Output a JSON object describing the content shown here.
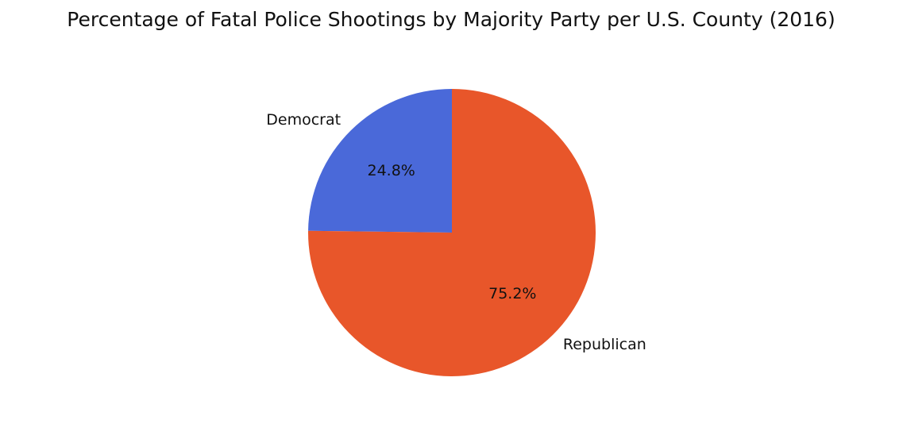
{
  "chart_data": {
    "type": "pie",
    "title": "Percentage of Fatal Police Shootings by Majority Party per U.S. County (2016)",
    "slices": [
      {
        "label": "Democrat",
        "value": 24.8,
        "pct_label": "24.8%",
        "color": "#4a69d9"
      },
      {
        "label": "Republican",
        "value": 75.2,
        "pct_label": "75.2%",
        "color": "#e8562a"
      }
    ],
    "start_angle": "top",
    "direction": "counterclockwise",
    "legend": "none"
  }
}
